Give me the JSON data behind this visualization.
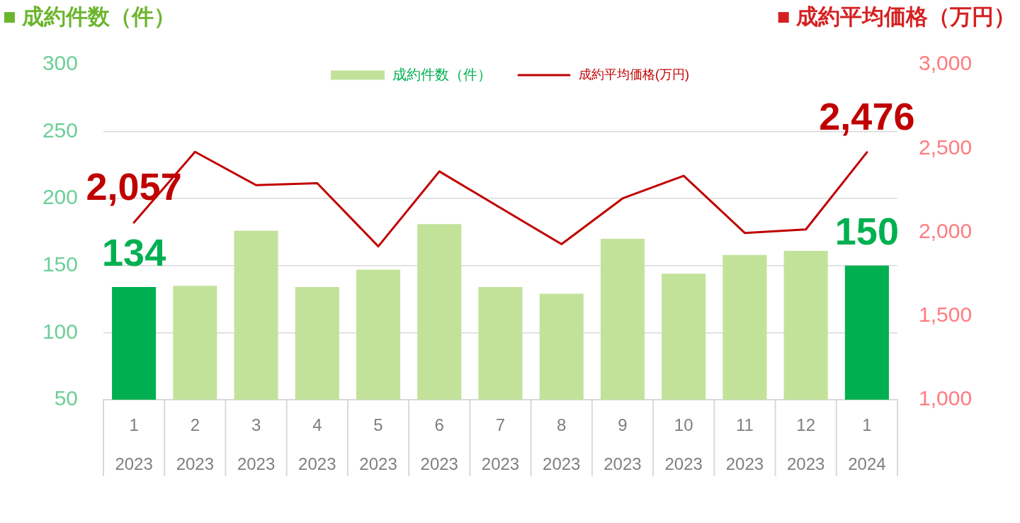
{
  "chart_data": {
    "type": "bar",
    "ylabel": "■ 成約件数（件）",
    "y2label": "■ 成約平均価格（万円）",
    "categories": [
      "1\n2023",
      "2\n2023",
      "3\n2023",
      "4\n2023",
      "5\n2023",
      "6\n2023",
      "7\n2023",
      "8\n2023",
      "9\n2023",
      "10\n2023",
      "11\n2023",
      "12\n2023",
      "1\n2024"
    ],
    "series": [
      {
        "name": "成約件数（件）",
        "color": "#c2e29a",
        "colors": [
          "#00b050",
          "#c2e29a",
          "#c2e29a",
          "#c2e29a",
          "#c2e29a",
          "#c2e29a",
          "#c2e29a",
          "#c2e29a",
          "#c2e29a",
          "#c2e29a",
          "#c2e29a",
          "#c2e29a",
          "#00b050"
        ],
        "values": [
          134,
          135,
          176,
          134,
          147,
          181,
          134,
          129,
          170,
          144,
          158,
          161,
          150
        ],
        "value_labels": [
          "134",
          null,
          null,
          null,
          null,
          null,
          null,
          null,
          null,
          null,
          null,
          null,
          "150"
        ]
      },
      {
        "name": "成約平均価格(万円)",
        "type": "line",
        "axis": "y2",
        "color": "#c00000",
        "values": [
          2057,
          2479,
          2280,
          2292,
          1915,
          2362,
          2145,
          1928,
          2201,
          2336,
          1995,
          2016,
          2476
        ],
        "value_labels": [
          "2,057",
          null,
          null,
          null,
          null,
          null,
          null,
          null,
          null,
          null,
          null,
          null,
          "2,476"
        ]
      }
    ],
    "ylim": [
      50,
      300
    ],
    "yticks": [
      50,
      100,
      150,
      200,
      250,
      300
    ],
    "y2lim": [
      1000,
      3000
    ],
    "y2ticks": [
      {
        "value": 1000,
        "label": "1,000"
      },
      {
        "value": 1500,
        "label": "1,500"
      },
      {
        "value": 2000,
        "label": "2,000"
      },
      {
        "value": 2500,
        "label": "2,500"
      },
      {
        "value": 3000,
        "label": "3,000"
      }
    ],
    "grid": "y",
    "legend": "top",
    "marker": "none"
  }
}
